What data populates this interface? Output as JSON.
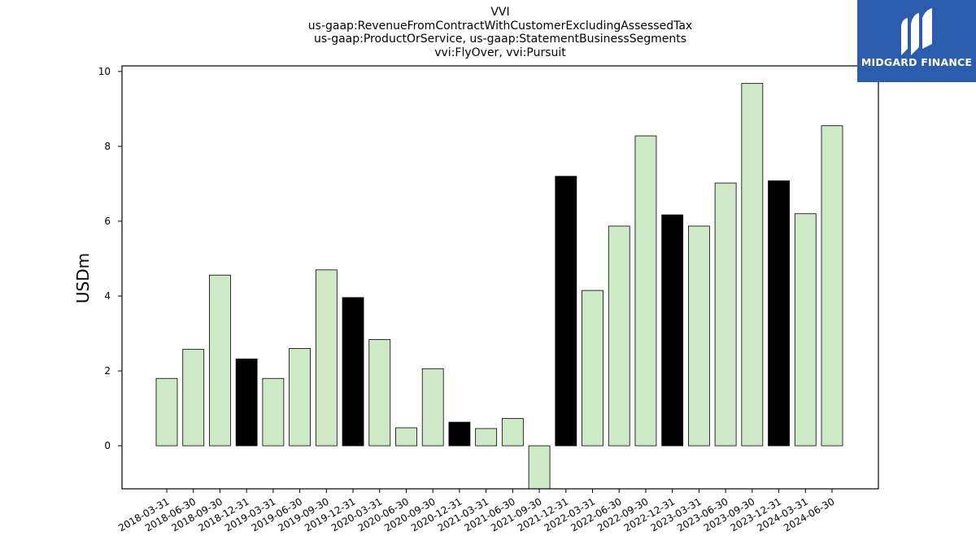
{
  "chart_data": {
    "type": "bar",
    "title": [
      "VVI",
      "us-gaap:RevenueFromContractWithCustomerExcludingAssessedTax",
      "us-gaap:ProductOrService, us-gaap:StatementBusinessSegments",
      "vvi:FlyOver, vvi:Pursuit"
    ],
    "xlabel": "",
    "ylabel": "USDm",
    "ylim": [
      -1.15,
      10.15
    ],
    "yticks": [
      0,
      2,
      4,
      6,
      8,
      10
    ],
    "grid": false,
    "categories": [
      "2018-03-31",
      "2018-06-30",
      "2018-09-30",
      "2018-12-31",
      "2019-03-31",
      "2019-06-30",
      "2019-09-30",
      "2019-12-31",
      "2020-03-31",
      "2020-06-30",
      "2020-09-30",
      "2020-12-31",
      "2021-03-31",
      "2021-06-30",
      "2021-09-30",
      "2021-12-31",
      "2022-03-31",
      "2022-06-30",
      "2022-09-30",
      "2022-12-31",
      "2023-03-31",
      "2023-06-30",
      "2023-09-30",
      "2023-12-31",
      "2024-03-31",
      "2024-06-30"
    ],
    "values": [
      1.8,
      2.58,
      4.56,
      2.32,
      1.8,
      2.6,
      4.7,
      3.96,
      2.84,
      0.48,
      2.06,
      0.63,
      0.46,
      0.73,
      -1.15,
      7.2,
      4.15,
      5.87,
      8.28,
      6.17,
      5.87,
      7.02,
      9.68,
      7.08,
      6.2,
      8.55
    ],
    "colors": {
      "quarter": "#cde9c5",
      "year_end": "#000000",
      "edge": "#000000"
    },
    "year_end_flags": [
      false,
      false,
      false,
      true,
      false,
      false,
      false,
      true,
      false,
      false,
      false,
      true,
      false,
      false,
      false,
      true,
      false,
      false,
      false,
      true,
      false,
      false,
      false,
      true,
      false,
      false
    ]
  },
  "logo": {
    "text": "MIDGARD FINANCE",
    "background": "#2b5cad"
  }
}
